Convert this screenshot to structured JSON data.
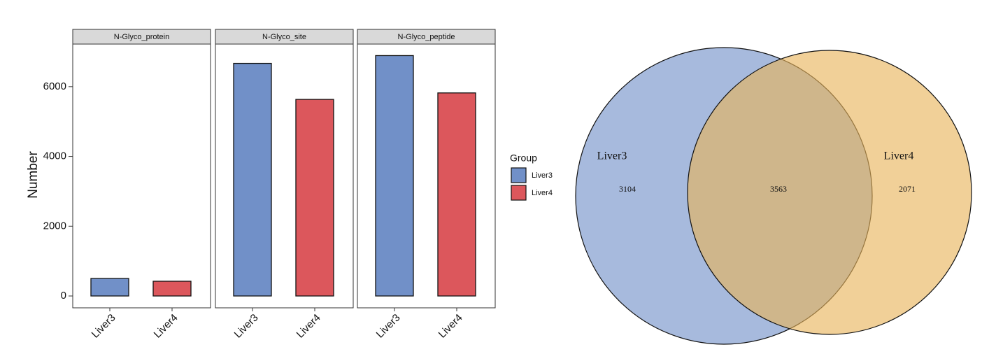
{
  "chart_data": [
    {
      "type": "bar",
      "y_label": "Number",
      "ylim": [
        -340,
        7220
      ],
      "yticks": [
        0,
        2000,
        4000,
        6000
      ],
      "legend_title": "Group",
      "categories": [
        "Liver3",
        "Liver4"
      ],
      "colors": [
        "#7190c8",
        "#dc575c"
      ],
      "facets": [
        {
          "title": "N-Glyco_protein",
          "values": [
            502,
            422
          ]
        },
        {
          "title": "N-Glyco_site",
          "values": [
            6667,
            5634
          ]
        },
        {
          "title": "N-Glyco_peptide",
          "values": [
            6890,
            5820
          ]
        }
      ]
    },
    {
      "type": "venn",
      "sets": [
        {
          "name": "Liver3",
          "color": "#7190c8",
          "value": 3104
        },
        {
          "name": "Liver4",
          "color": "#e8b359",
          "value": 2071
        }
      ],
      "intersection": 3563
    }
  ]
}
